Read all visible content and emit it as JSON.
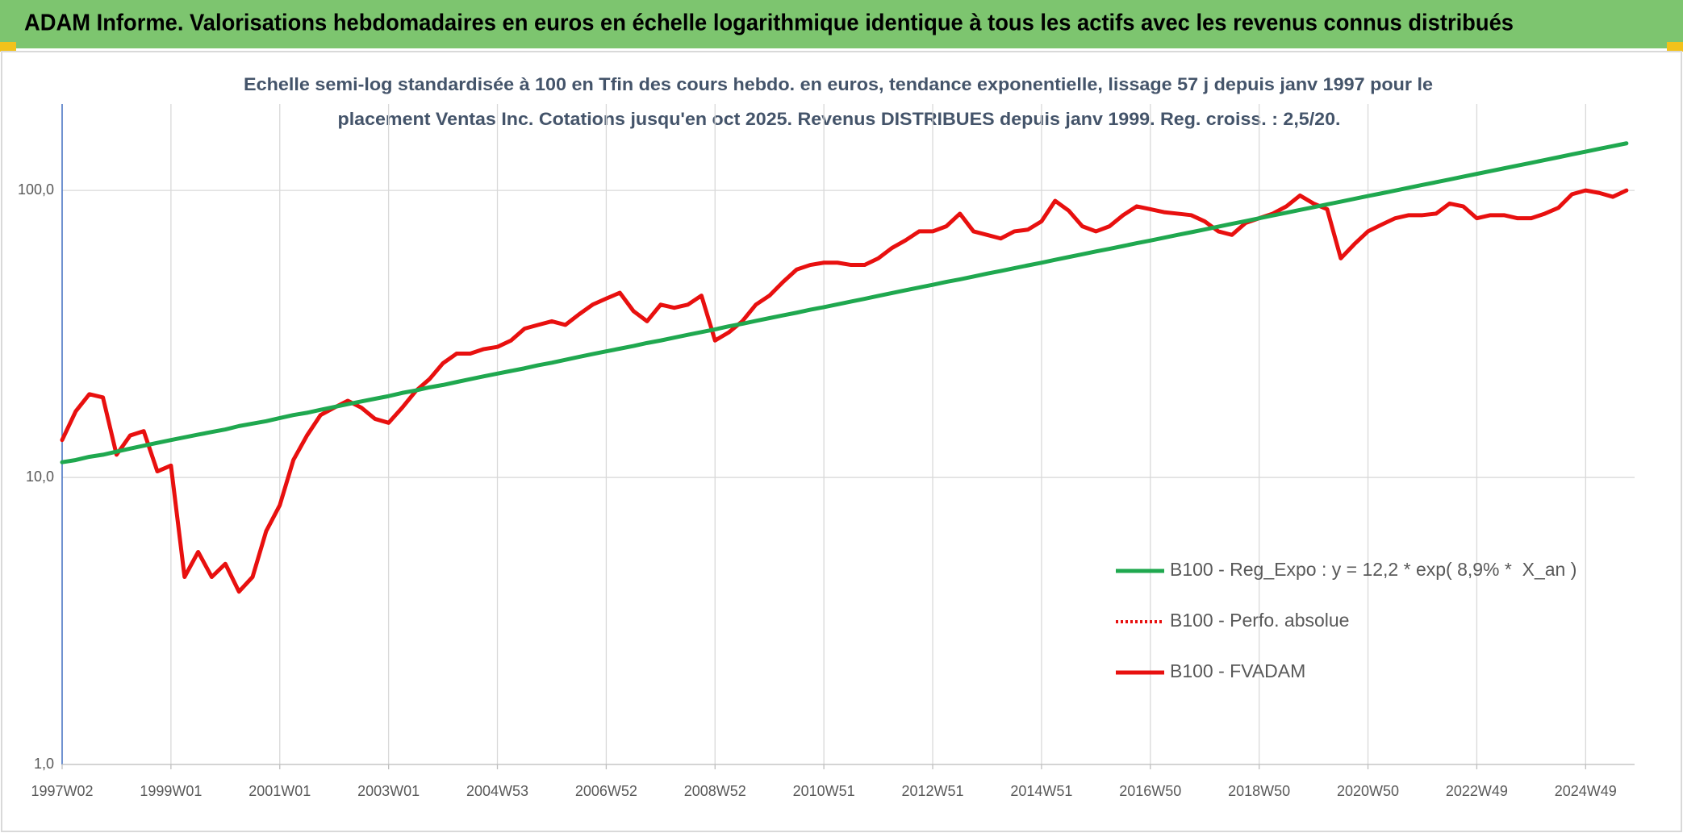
{
  "chart_data": {
    "type": "line",
    "title": "ADAM Informe. Valorisations hebdomadaires en euros en échelle logarithmique identique à tous les actifs avec les revenus connus distribués",
    "subtitle": [
      "Echelle semi-log standardisée à 100 en Tfin des cours hebdo. en euros, tendance exponentielle, lissage 57 j depuis janv 1997 pour le",
      "placement Ventas Inc. Cotations jusqu'en oct 2025. Revenus DISTRIBUES depuis janv 1999. Reg. croiss. : 2,5/20."
    ],
    "log_scale": true,
    "grid": true,
    "legend": "right",
    "ylim": [
      1,
      200
    ],
    "yticks": [
      {
        "value": 1,
        "label": "1,0"
      },
      {
        "value": 10,
        "label": "10,0"
      },
      {
        "value": 100,
        "label": "100,0"
      }
    ],
    "categories": [
      "1997W02",
      null,
      null,
      null,
      null,
      null,
      null,
      null,
      "1999W01",
      null,
      null,
      null,
      null,
      null,
      null,
      null,
      "2001W01",
      null,
      null,
      null,
      null,
      null,
      null,
      null,
      "2003W01",
      null,
      null,
      null,
      null,
      null,
      null,
      null,
      "2004W53",
      null,
      null,
      null,
      null,
      null,
      null,
      null,
      "2006W52",
      null,
      null,
      null,
      null,
      null,
      null,
      null,
      "2008W52",
      null,
      null,
      null,
      null,
      null,
      null,
      null,
      "2010W51",
      null,
      null,
      null,
      null,
      null,
      null,
      null,
      "2012W51",
      null,
      null,
      null,
      null,
      null,
      null,
      null,
      "2014W51",
      null,
      null,
      null,
      null,
      null,
      null,
      null,
      "2016W50",
      null,
      null,
      null,
      null,
      null,
      null,
      null,
      "2018W50",
      null,
      null,
      null,
      null,
      null,
      null,
      null,
      "2020W50",
      null,
      null,
      null,
      null,
      null,
      null,
      null,
      "2022W49",
      null,
      null,
      null,
      null,
      null,
      null,
      null,
      "2024W49",
      null,
      null,
      null
    ],
    "series": [
      {
        "name": "B100 - Reg_Expo : y = 12,2 * exp( 8,9% *  X_an )",
        "color": "#1fa84f",
        "style": "solid",
        "values": [
          11.3,
          11.5,
          11.8,
          12.0,
          12.3,
          12.6,
          12.9,
          13.2,
          13.5,
          13.8,
          14.1,
          14.4,
          14.7,
          15.1,
          15.4,
          15.7,
          16.1,
          16.5,
          16.8,
          17.2,
          17.6,
          18.0,
          18.4,
          18.8,
          19.2,
          19.7,
          20.1,
          20.6,
          21.0,
          21.5,
          22.0,
          22.5,
          23.0,
          23.5,
          24.0,
          24.6,
          25.1,
          25.7,
          26.3,
          26.9,
          27.5,
          28.1,
          28.7,
          29.4,
          30.0,
          30.7,
          31.4,
          32.1,
          32.8,
          33.6,
          34.3,
          35.1,
          35.9,
          36.7,
          37.5,
          38.4,
          39.2,
          40.1,
          41.0,
          41.9,
          42.9,
          43.9,
          44.9,
          45.9,
          46.9,
          48.0,
          49.0,
          50.1,
          51.3,
          52.4,
          53.6,
          54.8,
          56.0,
          57.3,
          58.6,
          59.9,
          61.3,
          62.6,
          64.0,
          65.5,
          66.9,
          68.4,
          70.0,
          71.5,
          73.1,
          74.8,
          76.5,
          78.2,
          80.0,
          81.8,
          83.6,
          85.5,
          87.4,
          89.4,
          91.4,
          93.5,
          95.6,
          97.7,
          99.9,
          102.2,
          104.5,
          106.8,
          109.2,
          111.7,
          114.2,
          116.8,
          119.4,
          122.1,
          124.8,
          127.6,
          130.5,
          133.5,
          136.5,
          139.6,
          142.7,
          145.9
        ]
      },
      {
        "name": "B100 - Perfo. absolue",
        "color": "#e8100f",
        "style": "dotted",
        "values": [
          13.5,
          17,
          19.5,
          19,
          12,
          14,
          14.5,
          10.5,
          11,
          4.5,
          5.5,
          4.5,
          5,
          4.0,
          4.5,
          6.5,
          8,
          11.5,
          14,
          16.5,
          17.5,
          18.5,
          17.5,
          16,
          15.5,
          17.5,
          20,
          22,
          25,
          27,
          27,
          28,
          28.5,
          30,
          33,
          34,
          35,
          34,
          37,
          40,
          42,
          44,
          38,
          35,
          40,
          39,
          40,
          43,
          30,
          32,
          35,
          40,
          43,
          48,
          53,
          55,
          56,
          56,
          55,
          55,
          58,
          63,
          67,
          72,
          72,
          75,
          83,
          72,
          70,
          68,
          72,
          73,
          78,
          92,
          85,
          75,
          72,
          75,
          82,
          88,
          86,
          84,
          83,
          82,
          78,
          72,
          70,
          77,
          80,
          83,
          88,
          96,
          90,
          86,
          58,
          65,
          72,
          76,
          80,
          82,
          82,
          83,
          90,
          88,
          80,
          82,
          82,
          80,
          80,
          83,
          87,
          97,
          100,
          98,
          95,
          100
        ]
      },
      {
        "name": "B100 - FVADAM",
        "color": "#e8100f",
        "style": "solid",
        "values": [
          13.5,
          17,
          19.5,
          19,
          12,
          14,
          14.5,
          10.5,
          11,
          4.5,
          5.5,
          4.5,
          5,
          4.0,
          4.5,
          6.5,
          8,
          11.5,
          14,
          16.5,
          17.5,
          18.5,
          17.5,
          16,
          15.5,
          17.5,
          20,
          22,
          25,
          27,
          27,
          28,
          28.5,
          30,
          33,
          34,
          35,
          34,
          37,
          40,
          42,
          44,
          38,
          35,
          40,
          39,
          40,
          43,
          30,
          32,
          35,
          40,
          43,
          48,
          53,
          55,
          56,
          56,
          55,
          55,
          58,
          63,
          67,
          72,
          72,
          75,
          83,
          72,
          70,
          68,
          72,
          73,
          78,
          92,
          85,
          75,
          72,
          75,
          82,
          88,
          86,
          84,
          83,
          82,
          78,
          72,
          70,
          77,
          80,
          83,
          88,
          96,
          90,
          86,
          58,
          65,
          72,
          76,
          80,
          82,
          82,
          83,
          90,
          88,
          80,
          82,
          82,
          80,
          80,
          83,
          87,
          97,
          100,
          98,
          95,
          100
        ]
      }
    ]
  }
}
